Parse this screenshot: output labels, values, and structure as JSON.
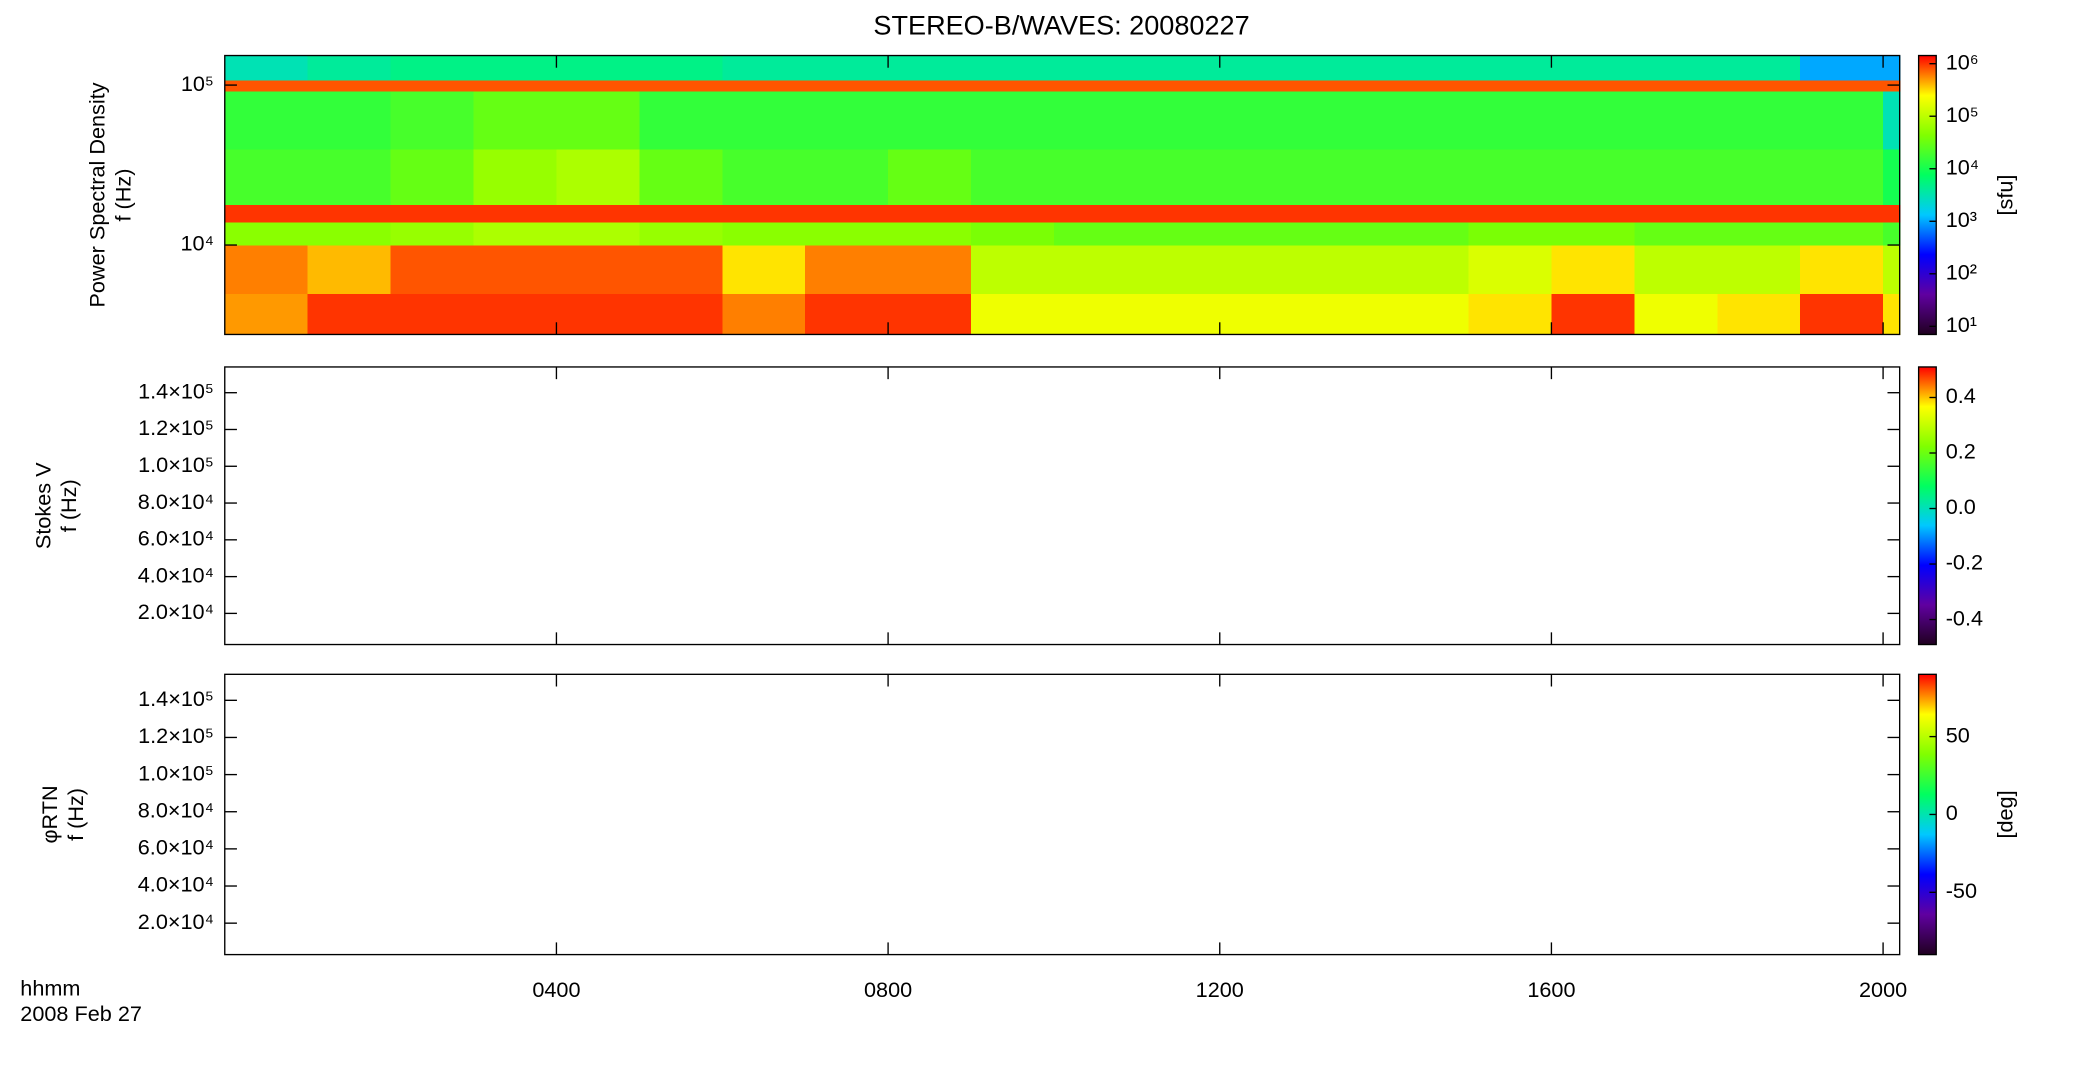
{
  "title": "STEREO-B/WAVES: 20080227",
  "chart_data": [
    {
      "type": "heatmap",
      "ylabel": [
        "Power Spectral Density",
        "f (Hz)"
      ],
      "log_y": true,
      "ylim": [
        2760,
        153000
      ],
      "yticks": [
        {
          "value": 10000,
          "label": "10⁴"
        },
        {
          "value": 100000,
          "label": "10⁵"
        }
      ],
      "x_edges": [
        0,
        1,
        2,
        3,
        4,
        5,
        6,
        7,
        8,
        9,
        10,
        11,
        12,
        13,
        14,
        15,
        16,
        17,
        18,
        19,
        20,
        20.2
      ],
      "y_edges": [
        2760,
        5000,
        10000,
        14000,
        18000,
        40000,
        92000,
        108000,
        153000
      ],
      "z": [
        [
          500000,
          1000000,
          1000000,
          1000000,
          1000000,
          1000000,
          600000,
          1000000,
          1000000,
          200000,
          200000,
          200000,
          200000,
          200000,
          200000,
          300000,
          1000000,
          200000,
          300000,
          1000000,
          300000
        ],
        [
          600000,
          400000,
          800000,
          800000,
          800000,
          800000,
          300000,
          600000,
          600000,
          100000,
          100000,
          100000,
          100000,
          100000,
          100000,
          150000,
          300000,
          100000,
          100000,
          300000,
          100000
        ],
        [
          50000,
          50000,
          60000,
          80000,
          80000,
          60000,
          50000,
          50000,
          50000,
          40000,
          30000,
          30000,
          30000,
          30000,
          30000,
          40000,
          40000,
          30000,
          30000,
          30000,
          20000
        ],
        [
          1000000,
          1000000,
          1000000,
          1000000,
          1000000,
          1000000,
          1000000,
          1000000,
          1000000,
          1000000,
          1000000,
          1000000,
          1000000,
          1000000,
          1000000,
          1000000,
          1000000,
          1000000,
          1000000,
          1000000,
          1000000
        ],
        [
          20000,
          20000,
          30000,
          60000,
          80000,
          30000,
          20000,
          20000,
          30000,
          20000,
          20000,
          20000,
          20000,
          20000,
          20000,
          20000,
          20000,
          20000,
          20000,
          20000,
          10000
        ],
        [
          15000,
          15000,
          20000,
          30000,
          30000,
          15000,
          15000,
          15000,
          15000,
          15000,
          15000,
          15000,
          15000,
          15000,
          15000,
          15000,
          15000,
          15000,
          15000,
          15000,
          3000
        ],
        [
          800000,
          800000,
          800000,
          800000,
          800000,
          800000,
          800000,
          800000,
          800000,
          800000,
          800000,
          800000,
          800000,
          800000,
          800000,
          800000,
          800000,
          800000,
          800000,
          800000,
          800000
        ],
        [
          3000,
          4000,
          5000,
          5000,
          5000,
          5000,
          4000,
          4000,
          4000,
          4000,
          4000,
          4000,
          4000,
          4000,
          4000,
          4000,
          4000,
          4000,
          4000,
          1000,
          1000
        ]
      ],
      "log_z": true,
      "zlim": [
        7,
        1430000
      ],
      "zticks": [
        {
          "value": 10,
          "label": "10¹"
        },
        {
          "value": 100,
          "label": "10²"
        },
        {
          "value": 1000,
          "label": "10³"
        },
        {
          "value": 10000,
          "label": "10⁴"
        },
        {
          "value": 100000,
          "label": "10⁵"
        },
        {
          "value": 1000000,
          "label": "10⁶"
        }
      ],
      "zlabel": "[sfu]",
      "colormap": [
        "#200020",
        "#6000a0",
        "#0000ff",
        "#00c8ff",
        "#00ff60",
        "#80ff00",
        "#ffff00",
        "#ff0000"
      ]
    },
    {
      "type": "heatmap",
      "ylabel": [
        "Stokes V",
        "f (Hz)"
      ],
      "ylim": [
        3070,
        154000
      ],
      "yticks": [
        {
          "value": 20000,
          "label": "2.0×10⁴"
        },
        {
          "value": 40000,
          "label": "4.0×10⁴"
        },
        {
          "value": 60000,
          "label": "6.0×10⁴"
        },
        {
          "value": 80000,
          "label": "8.0×10⁴"
        },
        {
          "value": 100000,
          "label": "1.0×10⁵"
        },
        {
          "value": 120000,
          "label": "1.2×10⁵"
        },
        {
          "value": 140000,
          "label": "1.4×10⁵"
        }
      ],
      "zlim": [
        -0.49,
        0.51
      ],
      "zticks": [
        -0.4,
        -0.2,
        {
          "value": 0,
          "label": "0.0"
        },
        0.2,
        0.4
      ],
      "colormap": [
        "#200020",
        "#6000a0",
        "#0000ff",
        "#00c8ff",
        "#00ff60",
        "#80ff00",
        "#ffff00",
        "#ff0000"
      ]
    },
    {
      "type": "heatmap",
      "ylabel": [
        "φRTN",
        "f (Hz)"
      ],
      "ylim": [
        3070,
        154000
      ],
      "yticks": [
        {
          "value": 20000,
          "label": "2.0×10⁴"
        },
        {
          "value": 40000,
          "label": "4.0×10⁴"
        },
        {
          "value": 60000,
          "label": "6.0×10⁴"
        },
        {
          "value": 80000,
          "label": "8.0×10⁴"
        },
        {
          "value": 100000,
          "label": "1.0×10⁵"
        },
        {
          "value": 120000,
          "label": "1.2×10⁵"
        },
        {
          "value": 140000,
          "label": "1.4×10⁵"
        }
      ],
      "zlim": [
        -90,
        90
      ],
      "zticks": [
        -50,
        0,
        50
      ],
      "zlabel": "[deg]",
      "colormap": [
        "#200020",
        "#6000a0",
        "#0000ff",
        "#00c8ff",
        "#00ff60",
        "#80ff00",
        "#ffff00",
        "#ff0000"
      ],
      "xlim": [
        0,
        20.2
      ],
      "xticks": [
        {
          "value": 4,
          "label": "0400"
        },
        {
          "value": 8,
          "label": "0800"
        },
        {
          "value": 12,
          "label": "1200"
        },
        {
          "value": 16,
          "label": "1600"
        },
        {
          "value": 20,
          "label": "2000"
        }
      ],
      "xlabel": [
        "hhmm",
        "2008 Feb 27"
      ]
    }
  ]
}
